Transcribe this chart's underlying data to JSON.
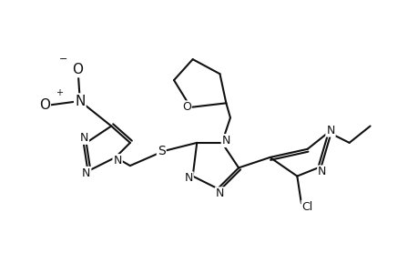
{
  "background_color": "#ffffff",
  "line_color": "#111111",
  "line_width": 1.5,
  "font_size": 9,
  "figsize": [
    4.6,
    3.0
  ],
  "dpi": 100,
  "xlim": [
    0,
    10
  ],
  "ylim": [
    0,
    6.5
  ]
}
